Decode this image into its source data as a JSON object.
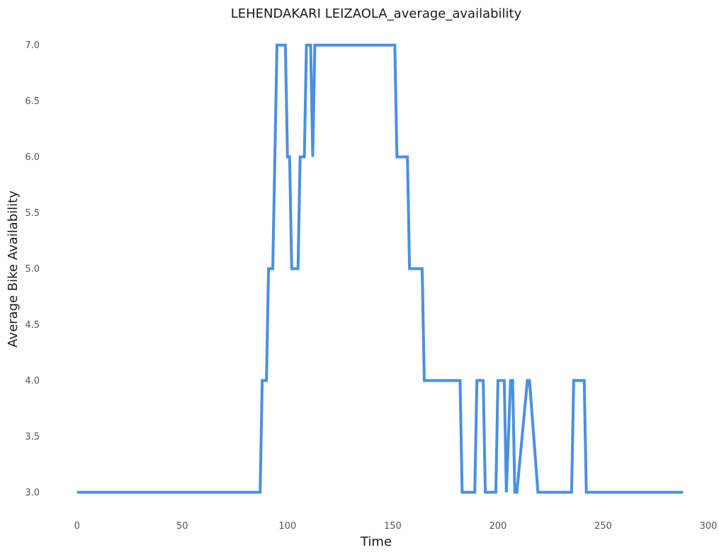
{
  "chart_data": {
    "type": "line",
    "title": "LEHENDAKARI LEIZAOLA_average_availability",
    "xlabel": "Time",
    "ylabel": "Average Bike Availability",
    "xlim": [
      -8,
      300
    ],
    "ylim": [
      2.8,
      7.15
    ],
    "xticks": [
      0,
      50,
      100,
      150,
      200,
      250,
      300
    ],
    "yticks": [
      3.0,
      3.5,
      4.0,
      4.5,
      5.0,
      5.5,
      6.0,
      6.5,
      7.0
    ],
    "grid": false,
    "colors": {
      "line": "#4a90e2"
    },
    "series": [
      {
        "x": [
          0,
          87,
          88,
          90,
          91,
          93,
          95,
          99,
          100,
          101,
          102,
          105,
          106,
          108,
          109,
          111,
          112,
          113,
          114,
          151,
          152,
          157,
          158,
          164,
          165,
          182,
          183,
          189,
          190,
          193,
          194,
          199,
          200,
          203,
          204,
          206,
          207,
          208,
          209,
          214,
          215,
          219,
          220,
          235,
          236,
          241,
          242,
          288
        ],
        "y": [
          3,
          3,
          4,
          4,
          5,
          5,
          7,
          7,
          6,
          6,
          5,
          5,
          6,
          6,
          7,
          7,
          6,
          7,
          7,
          7,
          6,
          6,
          5,
          5,
          4,
          4,
          3,
          3,
          4,
          4,
          3,
          3,
          4,
          4,
          3,
          4,
          4,
          3,
          3,
          4,
          4,
          3,
          3,
          3,
          4,
          4,
          3,
          3
        ]
      }
    ]
  }
}
